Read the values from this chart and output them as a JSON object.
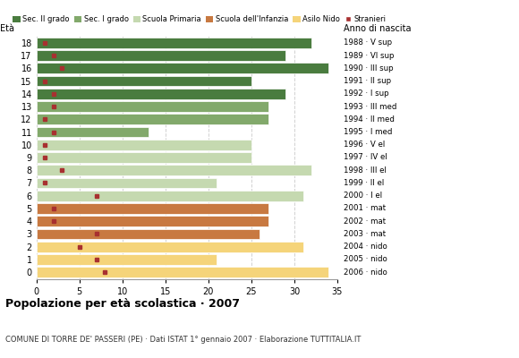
{
  "ages": [
    18,
    17,
    16,
    15,
    14,
    13,
    12,
    11,
    10,
    9,
    8,
    7,
    6,
    5,
    4,
    3,
    2,
    1,
    0
  ],
  "anni": [
    "1988 · V sup",
    "1989 · VI sup",
    "1990 · III sup",
    "1991 · II sup",
    "1992 · I sup",
    "1993 · III med",
    "1994 · II med",
    "1995 · I med",
    "1996 · V el",
    "1997 · IV el",
    "1998 · III el",
    "1999 · II el",
    "2000 · I el",
    "2001 · mat",
    "2002 · mat",
    "2003 · mat",
    "2004 · nido",
    "2005 · nido",
    "2006 · nido"
  ],
  "bar_values": [
    32,
    29,
    34,
    25,
    29,
    27,
    27,
    13,
    25,
    25,
    32,
    21,
    31,
    27,
    27,
    26,
    31,
    21,
    34
  ],
  "stranieri": [
    1,
    2,
    3,
    1,
    2,
    2,
    1,
    2,
    1,
    1,
    3,
    1,
    7,
    2,
    2,
    7,
    5,
    7,
    8
  ],
  "bar_colors_by_age": {
    "18": "#4a7c3f",
    "17": "#4a7c3f",
    "16": "#4a7c3f",
    "15": "#4a7c3f",
    "14": "#4a7c3f",
    "13": "#82a96b",
    "12": "#82a96b",
    "11": "#82a96b",
    "10": "#c5d9b0",
    "9": "#c5d9b0",
    "8": "#c5d9b0",
    "7": "#c5d9b0",
    "6": "#c5d9b0",
    "5": "#c87941",
    "4": "#c87941",
    "3": "#c87941",
    "2": "#f5d47a",
    "1": "#f5d47a",
    "0": "#f5d47a"
  },
  "title": "Popolazione per età scolastica · 2007",
  "subtitle": "COMUNE DI TORRE DE' PASSERI (PE) · Dati ISTAT 1° gennaio 2007 · Elaborazione TUTTITALIA.IT",
  "legend_labels": [
    "Sec. II grado",
    "Sec. I grado",
    "Scuola Primaria",
    "Scuola dell'Infanzia",
    "Asilo Nido",
    "Stranieri"
  ],
  "legend_colors": [
    "#4a7c3f",
    "#82a96b",
    "#c5d9b0",
    "#c87941",
    "#f5d47a",
    "#a83030"
  ],
  "stranieri_color": "#a83030",
  "ylabel": "Età",
  "right_header": "Anno di nascita",
  "xlim": [
    0,
    35
  ],
  "xticks": [
    0,
    5,
    10,
    15,
    20,
    25,
    30,
    35
  ],
  "bg_color": "#ffffff",
  "grid_color": "#cccccc"
}
